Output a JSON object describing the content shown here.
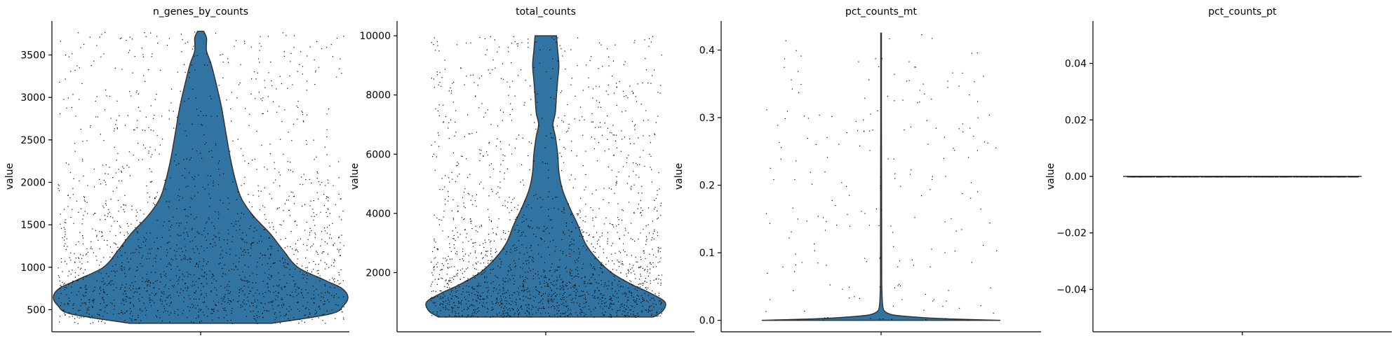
{
  "chart_data": [
    {
      "type": "violin",
      "title": "n_genes_by_counts",
      "ylabel": "value",
      "xlabel": "",
      "ylim": [
        240,
        3900
      ],
      "yticks": [
        500,
        1000,
        1500,
        2000,
        2500,
        3000,
        3500
      ],
      "tick_labels": [
        "500",
        "1000",
        "1500",
        "2000",
        "2500",
        "3000",
        "3500"
      ],
      "grid": false,
      "violin_profile": {
        "y": [
          340,
          450,
          550,
          650,
          750,
          850,
          1000,
          1200,
          1400,
          1600,
          1800,
          2000,
          2300,
          2600,
          2900,
          3200,
          3400,
          3550,
          3700,
          3780
        ],
        "density": [
          0.48,
          0.88,
          0.97,
          1.0,
          0.96,
          0.84,
          0.66,
          0.56,
          0.47,
          0.36,
          0.28,
          0.24,
          0.2,
          0.17,
          0.14,
          0.1,
          0.07,
          0.04,
          0.04,
          0.02
        ]
      },
      "points": {
        "count": 1900,
        "min": 340,
        "max": 3780
      }
    },
    {
      "type": "violin",
      "title": "total_counts",
      "ylabel": "value",
      "xlabel": "",
      "ylim": [
        0,
        10500
      ],
      "yticks": [
        2000,
        4000,
        6000,
        8000,
        10000
      ],
      "tick_labels": [
        "2000",
        "4000",
        "6000",
        "8000",
        "10000"
      ],
      "grid": false,
      "violin_profile": {
        "y": [
          500,
          700,
          1000,
          1300,
          1600,
          2000,
          2500,
          3000,
          3600,
          4200,
          4800,
          5400,
          6000,
          6600,
          7000,
          7400,
          8000,
          8500,
          9000,
          9500,
          10000
        ],
        "density": [
          0.9,
          0.98,
          1.0,
          0.88,
          0.72,
          0.55,
          0.42,
          0.33,
          0.27,
          0.2,
          0.14,
          0.11,
          0.1,
          0.08,
          0.06,
          0.08,
          0.09,
          0.1,
          0.11,
          0.1,
          0.09
        ]
      },
      "points": {
        "count": 2000,
        "min": 500,
        "max": 10000
      }
    },
    {
      "type": "violin",
      "title": "pct_counts_mt",
      "ylabel": "value",
      "xlabel": "",
      "ylim": [
        -0.017,
        0.443
      ],
      "yticks": [
        0.0,
        0.1,
        0.2,
        0.3,
        0.4
      ],
      "tick_labels": [
        "0.0",
        "0.1",
        "0.2",
        "0.3",
        "0.4"
      ],
      "grid": false,
      "violin_profile": {
        "y": [
          0.0,
          0.002,
          0.004,
          0.006,
          0.008,
          0.012,
          0.02,
          0.05,
          0.1,
          0.2,
          0.3,
          0.425
        ],
        "density": [
          1.0,
          0.6,
          0.35,
          0.2,
          0.1,
          0.04,
          0.015,
          0.006,
          0.005,
          0.004,
          0.003,
          0.003
        ]
      },
      "points": {
        "count": 220,
        "min": 0.0,
        "max": 0.425
      }
    },
    {
      "type": "violin",
      "title": "pct_counts_pt",
      "ylabel": "value",
      "xlabel": "",
      "ylim": [
        -0.055,
        0.055
      ],
      "yticks": [
        -0.04,
        -0.02,
        0.0,
        0.02,
        0.04
      ],
      "tick_labels": [
        "−0.04",
        "−0.02",
        "0.00",
        "0.02",
        "0.04"
      ],
      "grid": false,
      "violin_profile": {
        "y": [
          0.0
        ],
        "density": [
          1.0
        ]
      },
      "points": {
        "count": 900,
        "min": 0.0,
        "max": 0.0
      }
    }
  ],
  "colors": {
    "violin_fill": "#3274a1",
    "violin_edge": "#333333",
    "points": "#000000"
  }
}
